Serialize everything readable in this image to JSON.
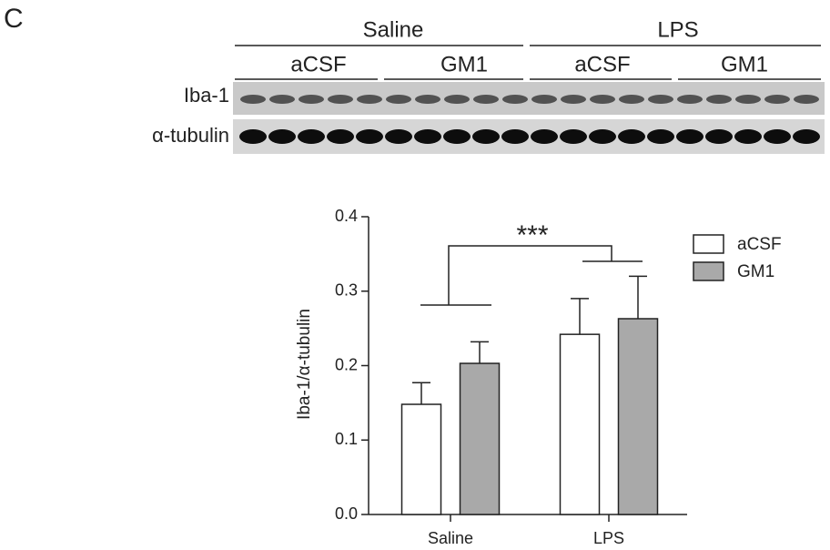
{
  "figure": {
    "panel": "C",
    "groups": [
      "Saline",
      "LPS"
    ],
    "subgroups": [
      "aCSF",
      "GM1",
      "aCSF",
      "GM1"
    ],
    "blot_rows": [
      "Iba-1",
      "α-tubulin"
    ]
  },
  "chart_data": {
    "type": "bar",
    "ylabel": "Iba-1/α-tubulin",
    "annotation": "***",
    "categories": [
      "Saline",
      "LPS"
    ],
    "series": [
      {
        "name": "aCSF",
        "color": "#ffffff",
        "values": [
          0.148,
          0.242
        ],
        "errors": [
          0.029,
          0.048
        ]
      },
      {
        "name": "GM1",
        "color": "#a9a9a9",
        "values": [
          0.203,
          0.263
        ],
        "errors": [
          0.029,
          0.057
        ]
      }
    ],
    "ylim": [
      0,
      0.4
    ],
    "yticks": [
      {
        "value": 0,
        "label": "0.0"
      },
      0.1,
      0.2,
      0.3,
      0.4
    ]
  }
}
